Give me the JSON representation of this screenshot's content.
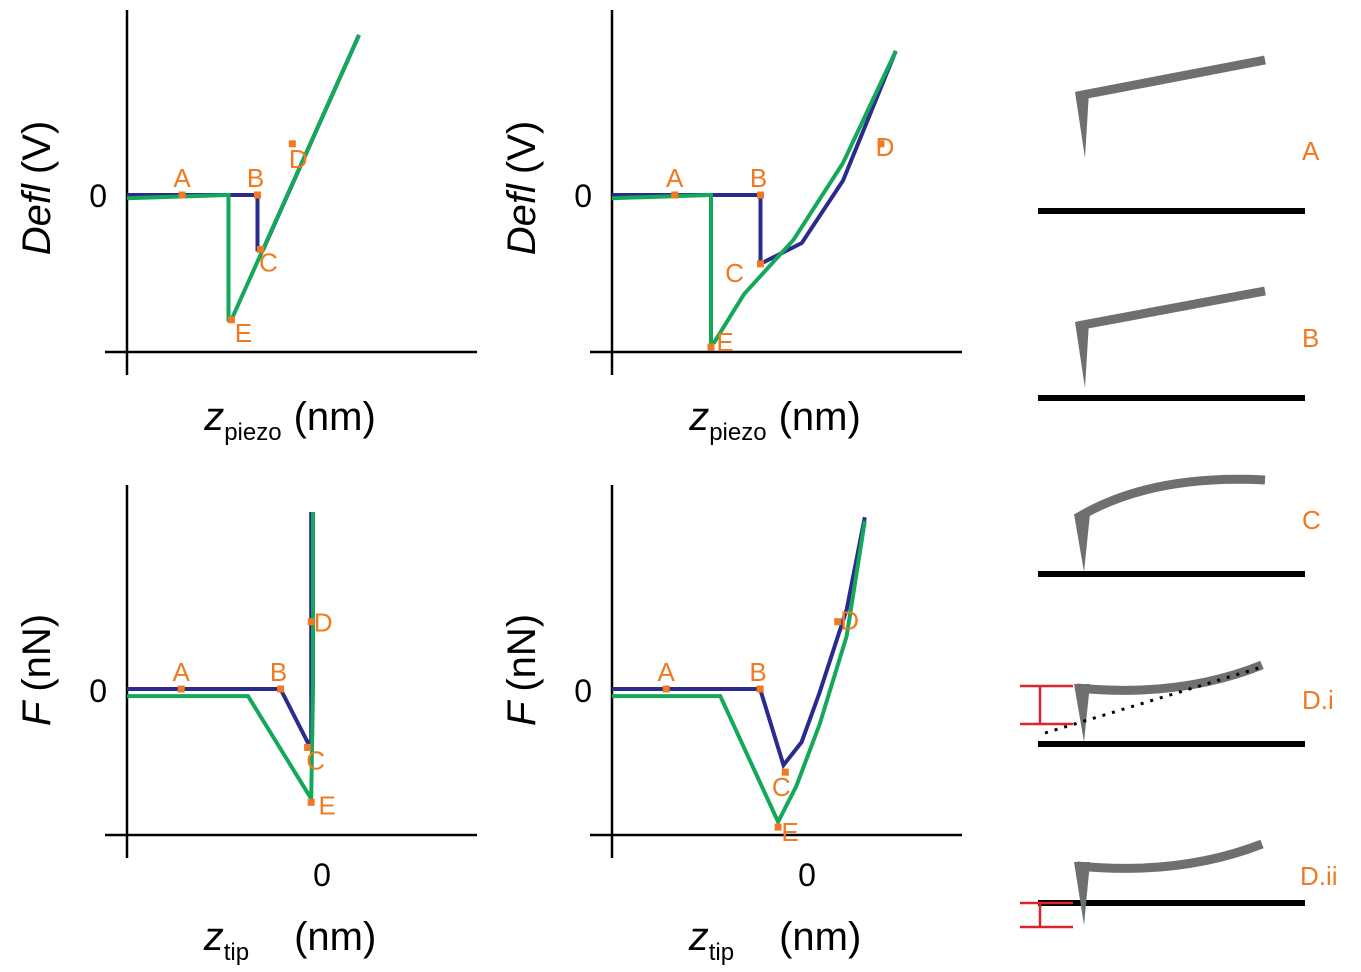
{
  "chart_data": [
    {
      "type": "line",
      "xlabel": "z",
      "xlabel_sub": "piezo",
      "xlabel_unit": "(nm)",
      "ylabel": "Defl",
      "ylabel_unit": "(V)",
      "ytick_labels": [
        "0"
      ],
      "xtick_labels": [],
      "xlim": [
        -1.0,
        1.0
      ],
      "ylim": [
        -1.0,
        1.0
      ],
      "series": [
        {
          "role": "approach",
          "color": "#2b2b8f",
          "x": [
            -1.0,
            -0.1,
            -0.1,
            -0.06,
            0.6
          ],
          "y": [
            0.0,
            0.0,
            -0.34,
            -0.34,
            1.0
          ]
        },
        {
          "role": "retract",
          "color": "#14a85a",
          "x": [
            0.6,
            -0.28,
            -0.3,
            -0.3,
            -1.0
          ],
          "y": [
            1.0,
            -0.78,
            -0.78,
            0.0,
            -0.02
          ]
        }
      ],
      "points": [
        {
          "label": "A",
          "x": -0.62,
          "y": 0.0
        },
        {
          "label": "B",
          "x": -0.1,
          "y": 0.0
        },
        {
          "label": "C",
          "x": -0.08,
          "y": -0.34
        },
        {
          "label": "D",
          "x": 0.14,
          "y": 0.32
        },
        {
          "label": "E",
          "x": -0.28,
          "y": -0.78
        }
      ]
    },
    {
      "type": "line",
      "xlabel": "z",
      "xlabel_sub": "piezo",
      "xlabel_unit": "(nm)",
      "ylabel": "Defl",
      "ylabel_unit": "(V)",
      "ytick_labels": [
        "0"
      ],
      "xtick_labels": [],
      "xlim": [
        -1.0,
        1.0
      ],
      "ylim": [
        -1.0,
        1.0
      ],
      "series": [
        {
          "role": "approach",
          "color": "#2b2b8f",
          "x": [
            -1.0,
            -0.1,
            -0.1,
            0.15,
            0.4,
            0.72
          ],
          "y": [
            0.0,
            0.0,
            -0.43,
            -0.3,
            0.09,
            0.9
          ]
        },
        {
          "role": "retract",
          "color": "#14a85a",
          "x": [
            0.72,
            0.4,
            0.1,
            -0.2,
            -0.38,
            -0.4,
            -0.4,
            -1.0
          ],
          "y": [
            0.9,
            0.2,
            -0.28,
            -0.62,
            -0.92,
            -0.92,
            0.0,
            -0.02
          ]
        }
      ],
      "points": [
        {
          "label": "A",
          "x": -0.62,
          "y": 0.0
        },
        {
          "label": "B",
          "x": -0.1,
          "y": 0.0
        },
        {
          "label": "C",
          "x": -0.1,
          "y": -0.43
        },
        {
          "label": "D",
          "x": 0.63,
          "y": 0.32
        },
        {
          "label": "E",
          "x": -0.4,
          "y": -0.95
        }
      ]
    },
    {
      "type": "line",
      "xlabel": "z",
      "xlabel_sub": "tip",
      "xlabel_unit": "(nm)",
      "ylabel": "F",
      "ylabel_unit": "(nN)",
      "ytick_labels": [
        "0"
      ],
      "xtick_labels": [
        "0"
      ],
      "xlim": [
        -1.0,
        0.8
      ],
      "ylim": [
        -1.0,
        1.0
      ],
      "series": [
        {
          "role": "approach",
          "color": "#2b2b8f",
          "x": [
            -1.0,
            -0.15,
            0.0,
            0.02,
            0.02
          ],
          "y": [
            0.0,
            0.0,
            -0.3,
            -0.3,
            1.0
          ]
        },
        {
          "role": "retract",
          "color": "#14a85a",
          "x": [
            0.03,
            0.03,
            0.02,
            -0.33,
            -1.0
          ],
          "y": [
            1.0,
            0.0,
            -0.62,
            -0.04,
            -0.04
          ]
        }
      ],
      "points": [
        {
          "label": "A",
          "x": -0.7,
          "y": 0.0
        },
        {
          "label": "B",
          "x": -0.15,
          "y": 0.0
        },
        {
          "label": "C",
          "x": 0.0,
          "y": -0.33
        },
        {
          "label": "D",
          "x": 0.02,
          "y": 0.38
        },
        {
          "label": "E",
          "x": 0.02,
          "y": -0.64
        }
      ]
    },
    {
      "type": "line",
      "xlabel": "z",
      "xlabel_sub": "tip",
      "xlabel_unit": "(nm)",
      "ylabel": "F",
      "ylabel_unit": "(nN)",
      "ytick_labels": [
        "0"
      ],
      "xtick_labels": [
        "0"
      ],
      "xlim": [
        -1.0,
        0.8
      ],
      "ylim": [
        -1.0,
        1.0
      ],
      "series": [
        {
          "role": "approach",
          "color": "#2b2b8f",
          "x": [
            -1.0,
            -0.18,
            -0.05,
            0.05,
            0.15,
            0.3,
            0.4
          ],
          "y": [
            0.0,
            0.0,
            -0.43,
            -0.3,
            -0.02,
            0.45,
            0.97
          ]
        },
        {
          "role": "retract",
          "color": "#14a85a",
          "x": [
            0.4,
            0.3,
            0.15,
            0.02,
            -0.08,
            -0.4,
            -1.0
          ],
          "y": [
            0.95,
            0.3,
            -0.2,
            -0.55,
            -0.75,
            -0.04,
            -0.04
          ]
        }
      ],
      "points": [
        {
          "label": "A",
          "x": -0.7,
          "y": 0.0
        },
        {
          "label": "B",
          "x": -0.18,
          "y": 0.0
        },
        {
          "label": "C",
          "x": -0.04,
          "y": -0.47
        },
        {
          "label": "D",
          "x": 0.25,
          "y": 0.38
        },
        {
          "label": "E",
          "x": -0.08,
          "y": -0.78
        }
      ]
    }
  ],
  "cantilever_stages": [
    {
      "label": "A",
      "lever": "straight",
      "tip_contact": false,
      "reference_line": false,
      "indentation_bracket": false
    },
    {
      "label": "B",
      "lever": "straight",
      "tip_contact": false,
      "reference_line": false,
      "indentation_bracket": false
    },
    {
      "label": "C",
      "lever": "bent-down",
      "tip_contact": true,
      "reference_line": false,
      "indentation_bracket": false
    },
    {
      "label": "D.i",
      "lever": "bent-up",
      "tip_contact": true,
      "reference_line": true,
      "indentation_bracket": true
    },
    {
      "label": "D.ii",
      "lever": "bent-up",
      "tip_contact": true,
      "reference_line": false,
      "indentation_bracket": true
    }
  ],
  "colors": {
    "approach": "#2b2b8f",
    "retract": "#14a85a",
    "point_label": "#f07a22",
    "cantilever": "#6f6f6f",
    "bracket": "#d9252b"
  }
}
